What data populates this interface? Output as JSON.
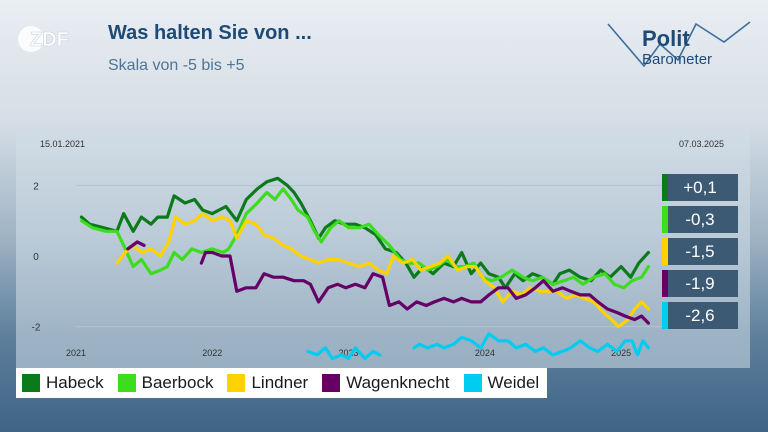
{
  "header": {
    "title": "Was halten Sie von ...",
    "subtitle": "Skala von -5 bis +5",
    "channel_logo": "ZDF",
    "brand_line1": "Polit",
    "brand_line2": "Barometer"
  },
  "chart_data": {
    "type": "line",
    "title": "Was halten Sie von ...",
    "subtitle": "Skala von -5 bis +5",
    "start_date_label": "15.01.2021",
    "end_date_label": "07.03.2025",
    "xlim": [
      2021.0,
      2025.3
    ],
    "ylim": [
      -3.0,
      3.0
    ],
    "y_ticks": [
      2,
      0,
      -2
    ],
    "y_tick_labels": [
      "2",
      "0",
      "-2"
    ],
    "x_ticks": [
      2021,
      2022,
      2023,
      2024,
      2025
    ],
    "x_tick_labels": [
      "2021",
      "2022",
      "2023",
      "2024",
      "2025"
    ],
    "legend_position": "bottom",
    "series": [
      {
        "name": "Habeck",
        "color": "#0a7a1a",
        "current_label": "+0,1",
        "points": [
          [
            2021.04,
            1.1
          ],
          [
            2021.1,
            0.9
          ],
          [
            2021.2,
            0.8
          ],
          [
            2021.3,
            0.7
          ],
          [
            2021.35,
            1.2
          ],
          [
            2021.42,
            0.7
          ],
          [
            2021.48,
            1.1
          ],
          [
            2021.55,
            0.9
          ],
          [
            2021.6,
            1.1
          ],
          [
            2021.67,
            1.1
          ],
          [
            2021.72,
            1.7
          ],
          [
            2021.8,
            1.5
          ],
          [
            2021.87,
            1.6
          ],
          [
            2021.93,
            1.3
          ],
          [
            2022.0,
            1.2
          ],
          [
            2022.1,
            1.4
          ],
          [
            2022.18,
            1.0
          ],
          [
            2022.25,
            1.6
          ],
          [
            2022.33,
            1.9
          ],
          [
            2022.4,
            2.1
          ],
          [
            2022.48,
            2.2
          ],
          [
            2022.55,
            2.0
          ],
          [
            2022.6,
            1.8
          ],
          [
            2022.65,
            1.5
          ],
          [
            2022.72,
            1.0
          ],
          [
            2022.78,
            0.5
          ],
          [
            2022.83,
            0.8
          ],
          [
            2022.9,
            1.0
          ],
          [
            2022.97,
            0.9
          ],
          [
            2023.05,
            0.9
          ],
          [
            2023.12,
            0.8
          ],
          [
            2023.2,
            0.6
          ],
          [
            2023.27,
            0.2
          ],
          [
            2023.35,
            0.1
          ],
          [
            2023.42,
            -0.2
          ],
          [
            2023.48,
            -0.6
          ],
          [
            2023.55,
            -0.3
          ],
          [
            2023.62,
            -0.5
          ],
          [
            2023.7,
            -0.2
          ],
          [
            2023.77,
            -0.3
          ],
          [
            2023.83,
            0.1
          ],
          [
            2023.9,
            -0.5
          ],
          [
            2023.97,
            -0.2
          ],
          [
            2024.03,
            -0.5
          ],
          [
            2024.1,
            -0.6
          ],
          [
            2024.15,
            -0.9
          ],
          [
            2024.22,
            -0.5
          ],
          [
            2024.28,
            -0.7
          ],
          [
            2024.35,
            -0.5
          ],
          [
            2024.42,
            -0.6
          ],
          [
            2024.5,
            -0.8
          ],
          [
            2024.55,
            -0.5
          ],
          [
            2024.62,
            -0.4
          ],
          [
            2024.7,
            -0.6
          ],
          [
            2024.78,
            -0.7
          ],
          [
            2024.85,
            -0.4
          ],
          [
            2024.92,
            -0.6
          ],
          [
            2025.0,
            -0.3
          ],
          [
            2025.07,
            -0.6
          ],
          [
            2025.13,
            -0.2
          ],
          [
            2025.2,
            0.1
          ]
        ]
      },
      {
        "name": "Baerbock",
        "color": "#3ddc1c",
        "current_label": "-0,3",
        "points": [
          [
            2021.04,
            1.0
          ],
          [
            2021.12,
            0.8
          ],
          [
            2021.22,
            0.7
          ],
          [
            2021.3,
            0.7
          ],
          [
            2021.35,
            0.3
          ],
          [
            2021.42,
            -0.3
          ],
          [
            2021.48,
            -0.1
          ],
          [
            2021.55,
            -0.5
          ],
          [
            2021.62,
            -0.4
          ],
          [
            2021.67,
            -0.3
          ],
          [
            2021.72,
            0.1
          ],
          [
            2021.78,
            -0.1
          ],
          [
            2021.85,
            0.2
          ],
          [
            2021.92,
            0.1
          ],
          [
            2022.0,
            0.2
          ],
          [
            2022.08,
            0.1
          ],
          [
            2022.12,
            0.2
          ],
          [
            2022.18,
            0.6
          ],
          [
            2022.25,
            1.2
          ],
          [
            2022.33,
            1.5
          ],
          [
            2022.4,
            1.8
          ],
          [
            2022.46,
            1.6
          ],
          [
            2022.52,
            1.9
          ],
          [
            2022.58,
            1.6
          ],
          [
            2022.63,
            1.3
          ],
          [
            2022.7,
            1.1
          ],
          [
            2022.75,
            0.7
          ],
          [
            2022.8,
            0.4
          ],
          [
            2022.87,
            0.8
          ],
          [
            2022.93,
            1.0
          ],
          [
            2023.0,
            0.8
          ],
          [
            2023.08,
            0.8
          ],
          [
            2023.15,
            0.9
          ],
          [
            2023.22,
            0.6
          ],
          [
            2023.3,
            0.3
          ],
          [
            2023.38,
            -0.1
          ],
          [
            2023.45,
            -0.2
          ],
          [
            2023.52,
            -0.2
          ],
          [
            2023.58,
            -0.4
          ],
          [
            2023.65,
            -0.3
          ],
          [
            2023.72,
            -0.1
          ],
          [
            2023.78,
            -0.3
          ],
          [
            2023.85,
            -0.3
          ],
          [
            2023.92,
            -0.2
          ],
          [
            2023.98,
            -0.6
          ],
          [
            2024.05,
            -0.7
          ],
          [
            2024.12,
            -0.6
          ],
          [
            2024.2,
            -0.4
          ],
          [
            2024.28,
            -0.6
          ],
          [
            2024.35,
            -0.7
          ],
          [
            2024.42,
            -0.6
          ],
          [
            2024.5,
            -0.8
          ],
          [
            2024.58,
            -0.7
          ],
          [
            2024.65,
            -0.6
          ],
          [
            2024.72,
            -0.8
          ],
          [
            2024.8,
            -0.6
          ],
          [
            2024.88,
            -0.5
          ],
          [
            2024.95,
            -0.8
          ],
          [
            2025.02,
            -0.9
          ],
          [
            2025.08,
            -0.7
          ],
          [
            2025.15,
            -0.6
          ],
          [
            2025.2,
            -0.3
          ]
        ]
      },
      {
        "name": "Lindner",
        "color": "#ffd200",
        "current_label": "-1,5",
        "points": [
          [
            2021.3,
            -0.2
          ],
          [
            2021.36,
            0.1
          ],
          [
            2021.42,
            0.3
          ],
          [
            2021.48,
            0.1
          ],
          [
            2021.55,
            0.2
          ],
          [
            2021.62,
            0.0
          ],
          [
            2021.68,
            0.4
          ],
          [
            2021.73,
            1.1
          ],
          [
            2021.8,
            0.9
          ],
          [
            2021.87,
            1.0
          ],
          [
            2021.93,
            1.2
          ],
          [
            2022.0,
            1.0
          ],
          [
            2022.07,
            1.1
          ],
          [
            2022.13,
            1.0
          ],
          [
            2022.18,
            0.5
          ],
          [
            2022.25,
            1.0
          ],
          [
            2022.32,
            0.9
          ],
          [
            2022.38,
            0.6
          ],
          [
            2022.45,
            0.5
          ],
          [
            2022.52,
            0.3
          ],
          [
            2022.58,
            0.2
          ],
          [
            2022.65,
            0.0
          ],
          [
            2022.72,
            -0.1
          ],
          [
            2022.78,
            -0.2
          ],
          [
            2022.85,
            -0.1
          ],
          [
            2022.92,
            -0.1
          ],
          [
            2023.0,
            -0.2
          ],
          [
            2023.08,
            -0.3
          ],
          [
            2023.15,
            -0.2
          ],
          [
            2023.22,
            -0.4
          ],
          [
            2023.28,
            -0.5
          ],
          [
            2023.33,
            0.0
          ],
          [
            2023.4,
            -0.2
          ],
          [
            2023.47,
            -0.1
          ],
          [
            2023.53,
            -0.4
          ],
          [
            2023.6,
            -0.3
          ],
          [
            2023.67,
            -0.2
          ],
          [
            2023.73,
            0.0
          ],
          [
            2023.8,
            -0.4
          ],
          [
            2023.87,
            -0.3
          ],
          [
            2023.93,
            -0.3
          ],
          [
            2024.0,
            -0.7
          ],
          [
            2024.07,
            -0.9
          ],
          [
            2024.13,
            -1.3
          ],
          [
            2024.2,
            -1.0
          ],
          [
            2024.27,
            -1.1
          ],
          [
            2024.33,
            -0.9
          ],
          [
            2024.4,
            -1.0
          ],
          [
            2024.47,
            -1.0
          ],
          [
            2024.53,
            -1.0
          ],
          [
            2024.6,
            -1.2
          ],
          [
            2024.67,
            -1.1
          ],
          [
            2024.73,
            -1.2
          ],
          [
            2024.8,
            -1.3
          ],
          [
            2024.87,
            -1.6
          ],
          [
            2024.93,
            -1.8
          ],
          [
            2024.98,
            -2.0
          ],
          [
            2025.05,
            -1.8
          ],
          [
            2025.1,
            -1.5
          ],
          [
            2025.15,
            -1.3
          ],
          [
            2025.2,
            -1.5
          ]
        ]
      },
      {
        "name": "Wagenknecht",
        "color": "#660066",
        "current_label": "-1,9",
        "points": [
          [
            2021.38,
            0.2
          ],
          [
            2021.45,
            0.4
          ],
          [
            2021.5,
            0.3
          ],
          [
            2021.92,
            -0.2
          ],
          [
            2021.95,
            0.1
          ],
          [
            2022.0,
            0.1
          ],
          [
            2022.07,
            0.0
          ],
          [
            2022.13,
            0.0
          ],
          [
            2022.18,
            -1.0
          ],
          [
            2022.25,
            -0.9
          ],
          [
            2022.32,
            -0.9
          ],
          [
            2022.38,
            -0.5
          ],
          [
            2022.45,
            -0.6
          ],
          [
            2022.52,
            -0.6
          ],
          [
            2022.6,
            -0.7
          ],
          [
            2022.67,
            -0.7
          ],
          [
            2022.72,
            -0.8
          ],
          [
            2022.78,
            -1.3
          ],
          [
            2022.85,
            -0.9
          ],
          [
            2022.92,
            -0.8
          ],
          [
            2022.98,
            -0.9
          ],
          [
            2023.05,
            -0.8
          ],
          [
            2023.12,
            -0.9
          ],
          [
            2023.18,
            -0.5
          ],
          [
            2023.25,
            -0.6
          ],
          [
            2023.3,
            -1.4
          ],
          [
            2023.37,
            -1.3
          ],
          [
            2023.43,
            -1.5
          ],
          [
            2023.5,
            -1.3
          ],
          [
            2023.57,
            -1.4
          ],
          [
            2023.63,
            -1.3
          ],
          [
            2023.7,
            -1.2
          ],
          [
            2023.77,
            -1.3
          ],
          [
            2023.83,
            -1.2
          ],
          [
            2023.9,
            -1.3
          ],
          [
            2023.97,
            -1.3
          ],
          [
            2024.03,
            -1.1
          ],
          [
            2024.1,
            -0.9
          ],
          [
            2024.17,
            -0.9
          ],
          [
            2024.23,
            -1.2
          ],
          [
            2024.3,
            -1.1
          ],
          [
            2024.37,
            -0.9
          ],
          [
            2024.43,
            -0.7
          ],
          [
            2024.5,
            -1.0
          ],
          [
            2024.57,
            -0.9
          ],
          [
            2024.63,
            -1.0
          ],
          [
            2024.7,
            -1.1
          ],
          [
            2024.77,
            -1.1
          ],
          [
            2024.83,
            -1.3
          ],
          [
            2024.9,
            -1.5
          ],
          [
            2024.97,
            -1.6
          ],
          [
            2025.03,
            -1.7
          ],
          [
            2025.1,
            -1.8
          ],
          [
            2025.15,
            -1.7
          ],
          [
            2025.2,
            -1.9
          ]
        ]
      },
      {
        "name": "Weidel",
        "color": "#00ccf0",
        "current_label": "-2,6",
        "points": [
          [
            2022.7,
            -2.7
          ],
          [
            2022.77,
            -2.8
          ],
          [
            2022.83,
            -2.6
          ],
          [
            2022.88,
            -2.9
          ],
          [
            2022.95,
            -2.8
          ],
          [
            2023.0,
            -2.9
          ],
          [
            2023.05,
            -2.6
          ],
          [
            2023.12,
            -2.9
          ],
          [
            2023.18,
            -2.7
          ],
          [
            2023.23,
            -2.8
          ],
          [
            2023.48,
            -2.6
          ],
          [
            2023.52,
            -2.5
          ],
          [
            2023.58,
            -2.6
          ],
          [
            2023.65,
            -2.5
          ],
          [
            2023.7,
            -2.6
          ],
          [
            2023.77,
            -2.5
          ],
          [
            2023.83,
            -2.3
          ],
          [
            2023.9,
            -2.4
          ],
          [
            2023.97,
            -2.6
          ],
          [
            2024.03,
            -2.2
          ],
          [
            2024.1,
            -2.4
          ],
          [
            2024.17,
            -2.4
          ],
          [
            2024.23,
            -2.6
          ],
          [
            2024.3,
            -2.5
          ],
          [
            2024.37,
            -2.7
          ],
          [
            2024.43,
            -2.6
          ],
          [
            2024.5,
            -2.8
          ],
          [
            2024.57,
            -2.7
          ],
          [
            2024.63,
            -2.6
          ],
          [
            2024.7,
            -2.4
          ],
          [
            2024.77,
            -2.6
          ],
          [
            2024.83,
            -2.7
          ],
          [
            2024.9,
            -2.5
          ],
          [
            2024.97,
            -2.7
          ],
          [
            2025.03,
            -2.4
          ],
          [
            2025.08,
            -2.4
          ],
          [
            2025.12,
            -2.8
          ],
          [
            2025.16,
            -2.4
          ],
          [
            2025.2,
            -2.6
          ]
        ]
      }
    ]
  }
}
